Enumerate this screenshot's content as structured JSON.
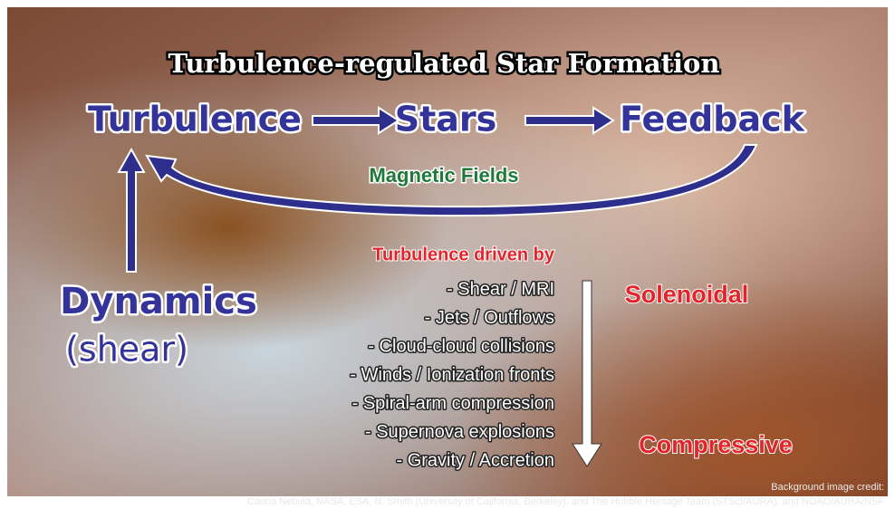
{
  "title": "Turbulence-regulated Star Formation",
  "nodes": {
    "turbulence": "Turbulence",
    "stars": "Stars",
    "feedback": "Feedback",
    "dynamics": "Dynamics",
    "shear": "(shear)"
  },
  "loop_label": "Magnetic Fields",
  "drivers": {
    "heading": "Turbulence driven by",
    "items": [
      "- Shear / MRI",
      "- Jets / Outflows",
      "- Cloud-cloud collisions",
      "- Winds / Ionization fronts",
      "- Spiral-arm compression",
      "- Supernova explosions",
      "- Gravity / Accretion"
    ]
  },
  "modes": {
    "top": "Solenoidal",
    "bottom": "Compressive"
  },
  "credit": {
    "heading": "Background image credit:",
    "text": "Carina Nebula, NASA, ESA, N. Smith (University of California, Berkeley), and The Hubble Heritage Team (STScI/AURA), and NOAO/AURA/NSF"
  }
}
